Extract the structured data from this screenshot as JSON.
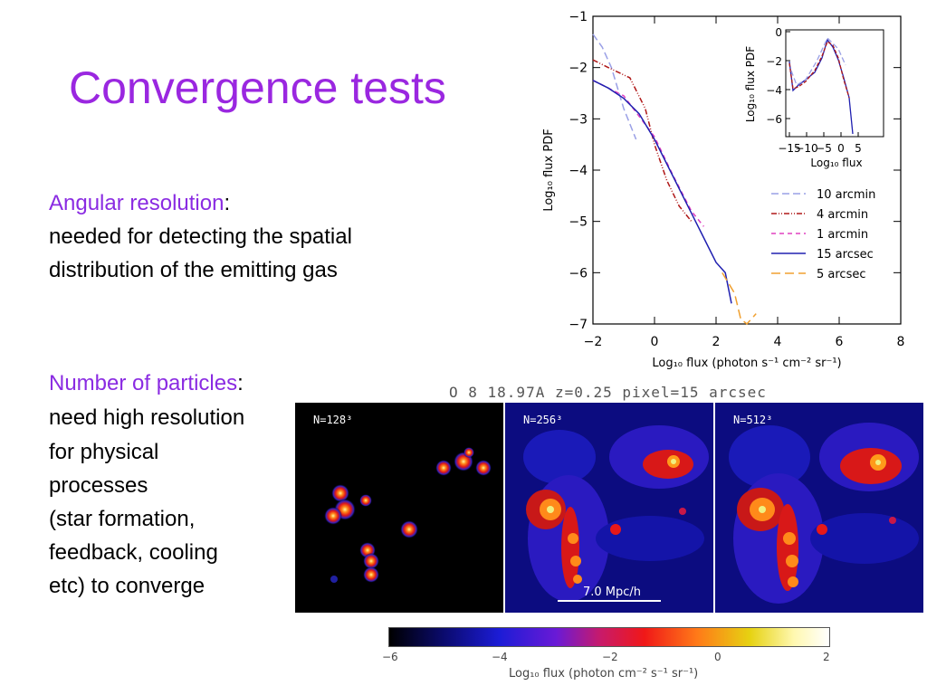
{
  "slide": {
    "title": "Convergence tests",
    "angular": {
      "heading": "Angular resolution",
      "colon": ":",
      "line1": "needed for detecting the spatial",
      "line2": "distribution of the emitting gas"
    },
    "particles": {
      "heading": "Number of particles",
      "colon": ":",
      "lines": [
        "need high resolution",
        "for physical",
        "processes",
        "(star formation,",
        "feedback, cooling",
        "etc) to converge"
      ]
    }
  },
  "main_plot": {
    "ylabel": "Log₁₀ flux PDF",
    "xlabel": "Log₁₀ flux (photon s⁻¹ cm⁻² sr⁻¹)",
    "x_ticks": [
      "−2",
      "0",
      "2",
      "4",
      "6",
      "8"
    ],
    "y_ticks": [
      "−1",
      "−2",
      "−3",
      "−4",
      "−5",
      "−6",
      "−7"
    ],
    "inset": {
      "ylabel": "Log₁₀ flux PDF",
      "xlabel": "Log₁₀ flux",
      "x_ticks": [
        "−15",
        "−10",
        "−5",
        "0",
        "5"
      ],
      "y_ticks": [
        "0",
        "−2",
        "−4",
        "−6"
      ]
    },
    "legend": [
      {
        "label": "10 arcmin",
        "color": "#9aa0e6",
        "dash": "8,4"
      },
      {
        "label": "4 arcmin",
        "color": "#b01818",
        "dash": "6,2,1,2,1,2"
      },
      {
        "label": "1 arcmin",
        "color": "#e040c0",
        "dash": "5,4"
      },
      {
        "label": "15 arcsec",
        "color": "#2020b0",
        "dash": ""
      },
      {
        "label": "5 arcsec",
        "color": "#f0a030",
        "dash": "10,5"
      }
    ]
  },
  "chart_data": {
    "type": "line",
    "xlabel": "Log10 flux (photon s-1 cm-2 sr-1)",
    "ylabel": "Log10 flux PDF",
    "xlim": [
      -2,
      8
    ],
    "ylim": [
      -7,
      -1
    ],
    "series": [
      {
        "name": "10 arcmin",
        "x": [
          -2.0,
          -1.7,
          -1.4,
          -1.0,
          -0.6
        ],
        "y": [
          -1.35,
          -1.6,
          -2.0,
          -2.8,
          -3.4
        ]
      },
      {
        "name": "4 arcmin",
        "x": [
          -2.0,
          -1.5,
          -0.8,
          -0.3,
          0.0,
          0.4,
          0.8,
          1.2
        ],
        "y": [
          -1.85,
          -2.0,
          -2.2,
          -2.8,
          -3.5,
          -4.2,
          -4.7,
          -5.0
        ]
      },
      {
        "name": "1 arcmin",
        "x": [
          -2.0,
          -1.0,
          0.0,
          0.6,
          1.2,
          1.6
        ],
        "y": [
          -2.25,
          -2.55,
          -3.35,
          -4.1,
          -4.8,
          -5.1
        ]
      },
      {
        "name": "15 arcsec",
        "x": [
          -2.0,
          -1.5,
          -1.0,
          -0.5,
          0.0,
          0.5,
          1.0,
          1.5,
          2.0,
          2.3,
          2.5
        ],
        "y": [
          -2.25,
          -2.4,
          -2.6,
          -2.9,
          -3.4,
          -4.0,
          -4.6,
          -5.2,
          -5.8,
          -6.0,
          -6.6
        ]
      },
      {
        "name": "5 arcsec",
        "x": [
          2.2,
          2.6,
          2.8,
          3.0,
          3.3
        ],
        "y": [
          -6.0,
          -6.4,
          -6.9,
          -7.0,
          -6.8
        ]
      }
    ]
  },
  "simulation": {
    "caption": "O  8 18.97A   z=0.25   pixel=15 arcsec",
    "panels": [
      {
        "label": "N=128³"
      },
      {
        "label": "N=256³"
      },
      {
        "label": "N=512³"
      }
    ],
    "scalebar": "7.0 Mpc/h"
  },
  "colorbar": {
    "ticks": [
      "−6",
      "−4",
      "−2",
      "0",
      "2"
    ],
    "label": "Log₁₀ flux (photon cm⁻² s⁻¹ sr⁻¹)"
  }
}
